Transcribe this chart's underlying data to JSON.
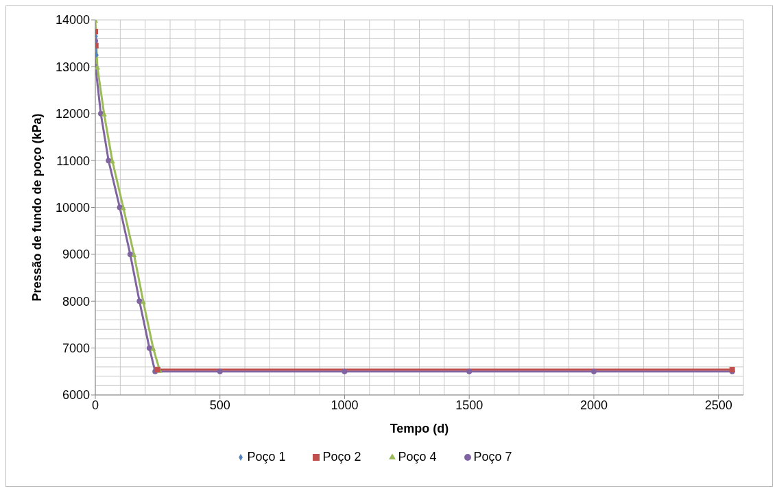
{
  "chart_data": {
    "type": "line",
    "xlabel": "Tempo (d)",
    "ylabel": "Pressão de fundo de poço (kPa)",
    "xlim": [
      0,
      2600
    ],
    "xticks": [
      0,
      500,
      1000,
      1500,
      2000,
      2500
    ],
    "ylim": [
      6000,
      14000
    ],
    "yticks": [
      6000,
      7000,
      8000,
      9000,
      10000,
      11000,
      12000,
      13000,
      14000
    ],
    "grid": true,
    "legend": "bottom",
    "line_style": "solid",
    "series": [
      {
        "name": "Poço 1",
        "color": "#4f81bd",
        "marker": "diamond",
        "x": [
          0,
          3
        ],
        "values": [
          13650,
          13250
        ]
      },
      {
        "name": "Poço 2",
        "color": "#c0504d",
        "marker": "square",
        "x": [
          0,
          2,
          100,
          250,
          2555
        ],
        "values": [
          13750,
          13450,
          null,
          6540,
          6540
        ]
      },
      {
        "name": "Poço 4",
        "color": "#9bbb59",
        "marker": "triangle",
        "x": [
          0,
          8,
          35,
          68,
          112,
          155,
          192,
          232,
          258
        ],
        "values": [
          14000,
          13000,
          12000,
          11000,
          10000,
          9000,
          8000,
          7000,
          6530
        ]
      },
      {
        "name": "Poço 7",
        "color": "#8064a2",
        "marker": "circle",
        "x": [
          0,
          1,
          22,
          53,
          98,
          140,
          177,
          217,
          240,
          500,
          1000,
          1500,
          2000,
          2555
        ],
        "values": [
          13550,
          13000,
          12000,
          11000,
          10000,
          9000,
          8000,
          7000,
          6500,
          6500,
          6500,
          6500,
          6500,
          6500
        ]
      }
    ]
  }
}
